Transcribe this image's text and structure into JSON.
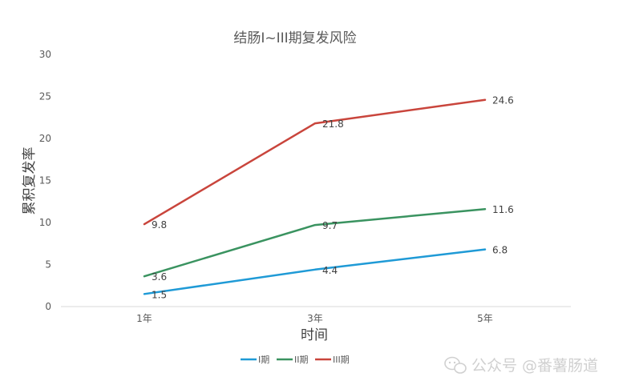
{
  "chart_data": {
    "type": "line",
    "title": "结肠I~III期复发风险",
    "xlabel": "时间",
    "ylabel": "累积复发率",
    "categories": [
      "1年",
      "3年",
      "5年"
    ],
    "ylim": [
      0,
      30
    ],
    "yticks": [
      0,
      5,
      10,
      15,
      20,
      25,
      30
    ],
    "grid": false,
    "legend_position": "bottom",
    "series": [
      {
        "name": "I期",
        "values": [
          1.5,
          4.4,
          6.8
        ],
        "color": "#1f9ad6"
      },
      {
        "name": "II期",
        "values": [
          3.6,
          9.7,
          11.6
        ],
        "color": "#3a9360"
      },
      {
        "name": "III期",
        "values": [
          9.8,
          21.8,
          24.6
        ],
        "color": "#c9453c"
      }
    ]
  },
  "watermark": {
    "text": "公众号 @番薯肠道",
    "icon": "wechat-icon"
  }
}
